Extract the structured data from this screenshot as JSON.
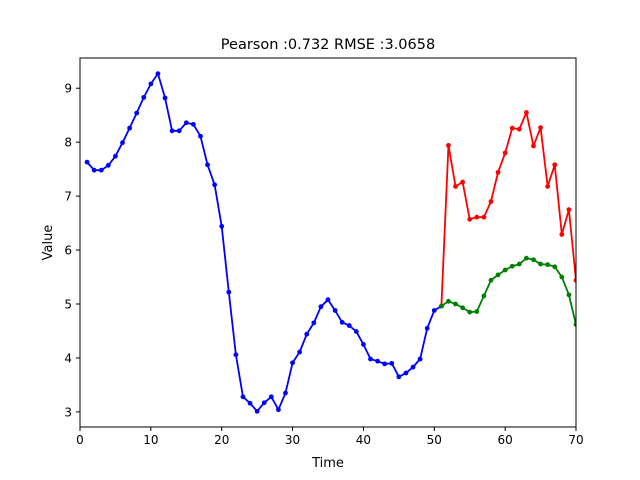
{
  "chart_data": {
    "type": "line",
    "title": "Pearson :0.732  RMSE :3.0658",
    "xlabel": "Time",
    "ylabel": "Value",
    "xlim": [
      0,
      70
    ],
    "ylim": [
      2.72,
      9.56
    ],
    "xticks": [
      0,
      10,
      20,
      30,
      40,
      50,
      60,
      70
    ],
    "yticks": [
      3,
      4,
      5,
      6,
      7,
      8,
      9
    ],
    "grid": false,
    "legend": "none",
    "series": [
      {
        "color": "#0000ff",
        "x": [
          1,
          2,
          3,
          4,
          5,
          6,
          7,
          8,
          9,
          10,
          11,
          12,
          13,
          14,
          15,
          16,
          17,
          18,
          19,
          20,
          21,
          22,
          23,
          24,
          25,
          26,
          27,
          28,
          29,
          30,
          31,
          32,
          33,
          34,
          35,
          36,
          37,
          38,
          39,
          40,
          41,
          42,
          43,
          44,
          45,
          46,
          47,
          48,
          49,
          50,
          51
        ],
        "y": [
          7.63,
          7.48,
          7.48,
          7.57,
          7.74,
          7.99,
          8.26,
          8.54,
          8.83,
          9.08,
          9.27,
          8.82,
          8.21,
          8.21,
          8.36,
          8.33,
          8.11,
          7.58,
          7.21,
          6.44,
          5.22,
          4.06,
          3.28,
          3.16,
          3.01,
          3.17,
          3.28,
          3.04,
          3.35,
          3.91,
          4.11,
          4.44,
          4.65,
          4.95,
          5.08,
          4.88,
          4.66,
          4.6,
          4.49,
          4.25,
          3.98,
          3.94,
          3.89,
          3.9,
          3.65,
          3.72,
          3.83,
          3.98,
          4.55,
          4.88,
          4.96
        ]
      },
      {
        "color": "#ff0000",
        "x": [
          51,
          52,
          53,
          54,
          55,
          56,
          57,
          58,
          59,
          60,
          61,
          62,
          63,
          64,
          65,
          66,
          67,
          68,
          69,
          70
        ],
        "y": [
          4.96,
          7.94,
          7.18,
          7.26,
          6.57,
          6.61,
          6.61,
          6.9,
          7.44,
          7.8,
          8.26,
          8.24,
          8.55,
          7.93,
          8.27,
          7.18,
          7.58,
          6.29,
          6.75,
          5.44
        ]
      },
      {
        "color": "#008000",
        "x": [
          51,
          52,
          53,
          54,
          55,
          56,
          57,
          58,
          59,
          60,
          61,
          62,
          63,
          64,
          65,
          66,
          67,
          68,
          69,
          70
        ],
        "y": [
          4.96,
          5.05,
          5.0,
          4.93,
          4.85,
          4.86,
          5.15,
          5.44,
          5.54,
          5.63,
          5.7,
          5.74,
          5.85,
          5.82,
          5.74,
          5.73,
          5.69,
          5.5,
          5.17,
          4.62
        ]
      }
    ]
  }
}
